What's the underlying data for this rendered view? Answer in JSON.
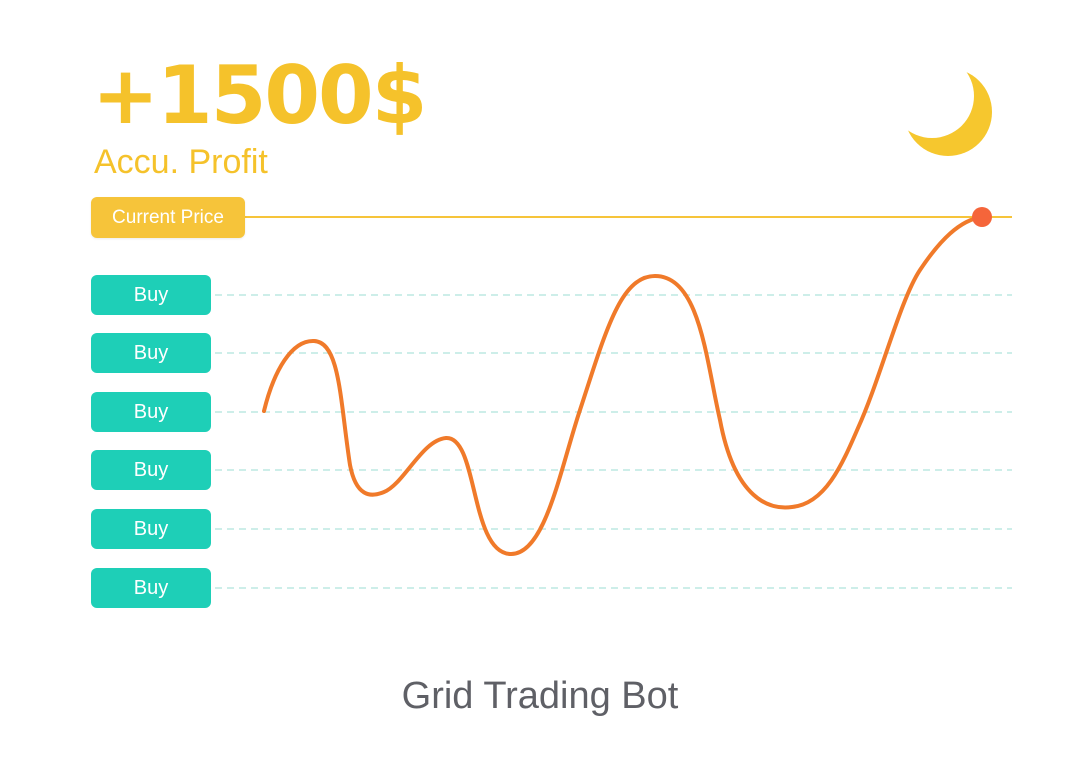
{
  "header": {
    "profit_amount": "+1500$",
    "profit_label": "Accu. Profit"
  },
  "icons": {
    "moon": "moon-icon"
  },
  "price_line": {
    "label": "Current Price"
  },
  "grid_buttons": [
    {
      "label": "Buy"
    },
    {
      "label": "Buy"
    },
    {
      "label": "Buy"
    },
    {
      "label": "Buy"
    },
    {
      "label": "Buy"
    },
    {
      "label": "Buy"
    }
  ],
  "caption": "Grid Trading Bot",
  "colors": {
    "accent_yellow": "#f5c22b",
    "buy_green": "#1ecfb7",
    "price_curve": "#f07a2a",
    "grid_line": "#cdeee9",
    "price_dot": "#f5653a"
  }
}
